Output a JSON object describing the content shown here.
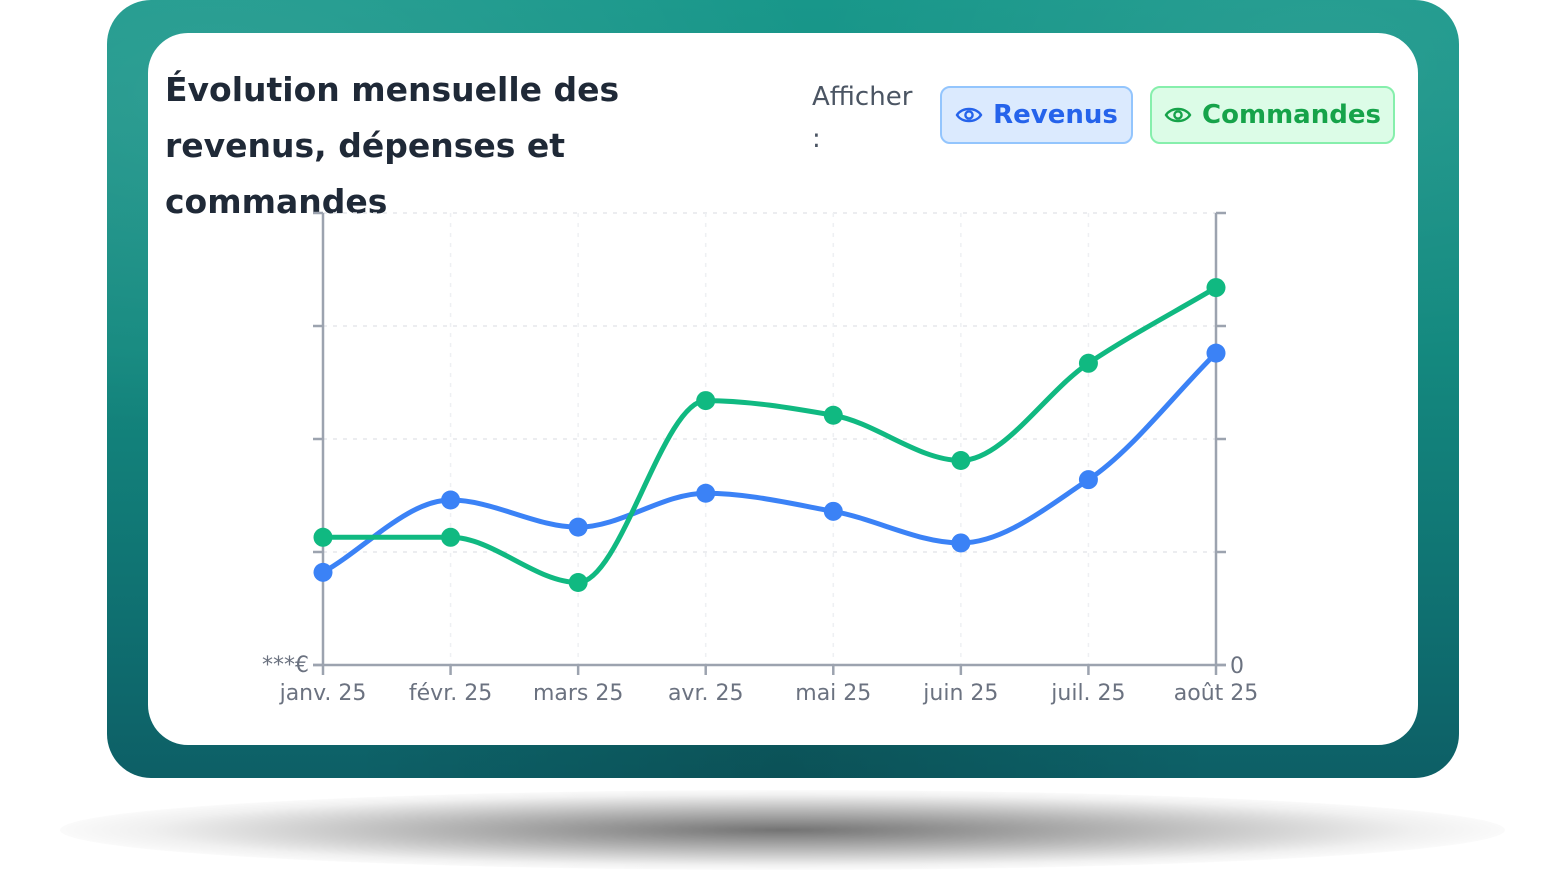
{
  "title": "Évolution mensuelle des revenus, dépenses et commandes",
  "controls": {
    "show_label": "Afficher :",
    "revenus_label": "Revenus",
    "commandes_label": "Commandes",
    "eye_icon": "eye-icon"
  },
  "colors": {
    "revenus": "#3b82f6",
    "commandes": "#10b981"
  },
  "chart_data": {
    "type": "line",
    "categories": [
      "janv. 25",
      "févr. 25",
      "mars 25",
      "avr. 25",
      "mai 25",
      "juin 25",
      "juil. 25",
      "août 25"
    ],
    "left_axis": {
      "min_label": "***€",
      "range": [
        0,
        4
      ]
    },
    "right_axis": {
      "min_label": "0",
      "range": [
        0,
        4
      ]
    },
    "grid": true,
    "series": [
      {
        "name": "Revenus",
        "axis": "left",
        "color": "#3b82f6",
        "values": [
          0.82,
          1.46,
          1.22,
          1.52,
          1.36,
          1.08,
          1.64,
          2.76
        ]
      },
      {
        "name": "Commandes",
        "axis": "right",
        "color": "#10b981",
        "values": [
          1.13,
          1.13,
          0.73,
          2.34,
          2.21,
          1.81,
          2.67,
          3.34
        ]
      }
    ]
  }
}
